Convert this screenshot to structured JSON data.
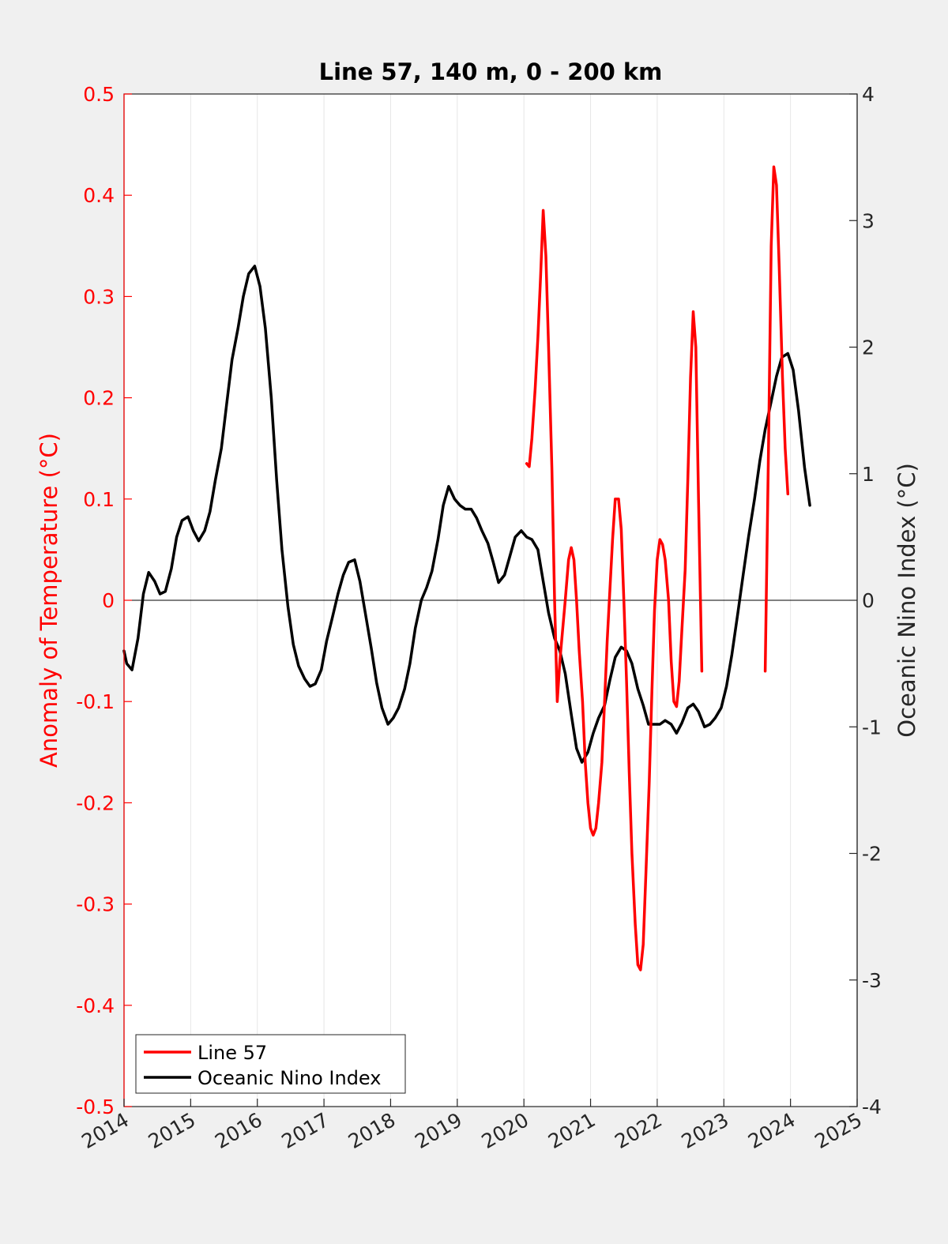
{
  "colors": {
    "figure_bg": "#f0f0f0",
    "axes_bg": "#ffffff",
    "left_axis": "#ff0000",
    "right_axis": "#262626",
    "grid": "#e6e6e6"
  },
  "chart_data": {
    "type": "line",
    "title": "Line 57, 140 m, 0 - 200 km",
    "xlim": [
      2014,
      2025
    ],
    "x_ticks": [
      2014,
      2015,
      2016,
      2017,
      2018,
      2019,
      2020,
      2021,
      2022,
      2023,
      2024,
      2025
    ],
    "x_tick_labels": [
      "2014",
      "2015",
      "2016",
      "2017",
      "2018",
      "2019",
      "2020",
      "2021",
      "2022",
      "2023",
      "2024",
      "2025"
    ],
    "ylabel_left": "Anomaly of Temperature (°C)",
    "ylim_left": [
      -0.5,
      0.5
    ],
    "y_ticks_left": [
      "-0.5",
      "-0.4",
      "-0.3",
      "-0.2",
      "-0.1",
      "0",
      "0.1",
      "0.2",
      "0.3",
      "0.4",
      "0.5"
    ],
    "ylabel_right": "Oceanic Nino Index (°C)",
    "ylim_right": [
      -4,
      4
    ],
    "y_ticks_right": [
      "-4",
      "-3",
      "-2",
      "-1",
      "0",
      "1",
      "2",
      "3",
      "4"
    ],
    "grid": "vertical",
    "zero_line": true,
    "legend": {
      "placement": "bottom-left",
      "entries": [
        "Line 57",
        "Oceanic Nino Index"
      ]
    },
    "series": [
      {
        "name": "Line 57",
        "axis": "left",
        "color": "#ff0000",
        "segments": [
          [
            [
              2020.04,
              0.135
            ],
            [
              2020.08,
              0.132
            ],
            [
              2020.12,
              0.16
            ],
            [
              2020.17,
              0.21
            ],
            [
              2020.21,
              0.26
            ],
            [
              2020.25,
              0.32
            ],
            [
              2020.29,
              0.385
            ],
            [
              2020.33,
              0.34
            ],
            [
              2020.37,
              0.25
            ],
            [
              2020.42,
              0.13
            ],
            [
              2020.46,
              0.0
            ],
            [
              2020.5,
              -0.1
            ],
            [
              2020.54,
              -0.06
            ],
            [
              2020.58,
              -0.03
            ],
            [
              2020.62,
              0.0
            ],
            [
              2020.67,
              0.04
            ],
            [
              2020.71,
              0.052
            ],
            [
              2020.75,
              0.04
            ],
            [
              2020.79,
              0.0
            ],
            [
              2020.83,
              -0.05
            ],
            [
              2020.88,
              -0.1
            ],
            [
              2020.92,
              -0.16
            ],
            [
              2020.96,
              -0.2
            ],
            [
              2021.0,
              -0.225
            ],
            [
              2021.04,
              -0.232
            ],
            [
              2021.08,
              -0.225
            ],
            [
              2021.12,
              -0.2
            ],
            [
              2021.17,
              -0.16
            ],
            [
              2021.21,
              -0.1
            ],
            [
              2021.25,
              -0.04
            ],
            [
              2021.29,
              0.01
            ],
            [
              2021.33,
              0.06
            ],
            [
              2021.37,
              0.1
            ],
            [
              2021.42,
              0.1
            ],
            [
              2021.46,
              0.07
            ],
            [
              2021.5,
              0.0
            ],
            [
              2021.54,
              -0.08
            ],
            [
              2021.58,
              -0.17
            ],
            [
              2021.62,
              -0.25
            ],
            [
              2021.67,
              -0.32
            ],
            [
              2021.71,
              -0.36
            ],
            [
              2021.75,
              -0.365
            ],
            [
              2021.79,
              -0.34
            ],
            [
              2021.83,
              -0.27
            ],
            [
              2021.88,
              -0.18
            ],
            [
              2021.92,
              -0.09
            ],
            [
              2021.96,
              -0.01
            ],
            [
              2022.0,
              0.04
            ],
            [
              2022.04,
              0.06
            ],
            [
              2022.08,
              0.055
            ],
            [
              2022.12,
              0.04
            ],
            [
              2022.17,
              0.0
            ],
            [
              2022.21,
              -0.06
            ],
            [
              2022.25,
              -0.1
            ],
            [
              2022.29,
              -0.105
            ],
            [
              2022.33,
              -0.08
            ],
            [
              2022.37,
              -0.03
            ],
            [
              2022.42,
              0.03
            ],
            [
              2022.46,
              0.12
            ],
            [
              2022.5,
              0.22
            ],
            [
              2022.54,
              0.285
            ],
            [
              2022.58,
              0.25
            ],
            [
              2022.62,
              0.1
            ],
            [
              2022.67,
              -0.07
            ]
          ],
          [
            [
              2023.62,
              -0.07
            ],
            [
              2023.67,
              0.15
            ],
            [
              2023.71,
              0.35
            ],
            [
              2023.75,
              0.428
            ],
            [
              2023.79,
              0.41
            ],
            [
              2023.83,
              0.33
            ],
            [
              2023.88,
              0.22
            ],
            [
              2023.92,
              0.15
            ],
            [
              2023.96,
              0.105
            ]
          ]
        ]
      },
      {
        "name": "Oceanic Nino Index",
        "axis": "right",
        "color": "#000000",
        "values": [
          [
            2014.0,
            -0.4
          ],
          [
            2014.04,
            -0.5
          ],
          [
            2014.12,
            -0.55
          ],
          [
            2014.21,
            -0.3
          ],
          [
            2014.29,
            0.05
          ],
          [
            2014.37,
            0.22
          ],
          [
            2014.46,
            0.15
          ],
          [
            2014.54,
            0.05
          ],
          [
            2014.62,
            0.07
          ],
          [
            2014.71,
            0.25
          ],
          [
            2014.79,
            0.5
          ],
          [
            2014.87,
            0.63
          ],
          [
            2014.96,
            0.66
          ],
          [
            2015.04,
            0.55
          ],
          [
            2015.12,
            0.47
          ],
          [
            2015.21,
            0.55
          ],
          [
            2015.29,
            0.7
          ],
          [
            2015.37,
            0.95
          ],
          [
            2015.46,
            1.2
          ],
          [
            2015.54,
            1.55
          ],
          [
            2015.62,
            1.9
          ],
          [
            2015.71,
            2.15
          ],
          [
            2015.79,
            2.4
          ],
          [
            2015.87,
            2.58
          ],
          [
            2015.96,
            2.64
          ],
          [
            2016.04,
            2.48
          ],
          [
            2016.12,
            2.15
          ],
          [
            2016.21,
            1.6
          ],
          [
            2016.29,
            0.95
          ],
          [
            2016.37,
            0.4
          ],
          [
            2016.46,
            -0.05
          ],
          [
            2016.54,
            -0.35
          ],
          [
            2016.62,
            -0.52
          ],
          [
            2016.71,
            -0.62
          ],
          [
            2016.79,
            -0.68
          ],
          [
            2016.87,
            -0.66
          ],
          [
            2016.96,
            -0.55
          ],
          [
            2017.04,
            -0.32
          ],
          [
            2017.12,
            -0.15
          ],
          [
            2017.21,
            0.05
          ],
          [
            2017.29,
            0.2
          ],
          [
            2017.37,
            0.3
          ],
          [
            2017.46,
            0.32
          ],
          [
            2017.54,
            0.15
          ],
          [
            2017.62,
            -0.1
          ],
          [
            2017.71,
            -0.38
          ],
          [
            2017.79,
            -0.65
          ],
          [
            2017.87,
            -0.85
          ],
          [
            2017.96,
            -0.98
          ],
          [
            2018.04,
            -0.93
          ],
          [
            2018.12,
            -0.85
          ],
          [
            2018.21,
            -0.7
          ],
          [
            2018.29,
            -0.5
          ],
          [
            2018.37,
            -0.22
          ],
          [
            2018.46,
            0.0
          ],
          [
            2018.54,
            0.1
          ],
          [
            2018.62,
            0.23
          ],
          [
            2018.71,
            0.48
          ],
          [
            2018.79,
            0.75
          ],
          [
            2018.87,
            0.9
          ],
          [
            2018.96,
            0.8
          ],
          [
            2019.04,
            0.75
          ],
          [
            2019.12,
            0.72
          ],
          [
            2019.21,
            0.72
          ],
          [
            2019.29,
            0.65
          ],
          [
            2019.37,
            0.55
          ],
          [
            2019.46,
            0.45
          ],
          [
            2019.54,
            0.3
          ],
          [
            2019.62,
            0.14
          ],
          [
            2019.71,
            0.2
          ],
          [
            2019.79,
            0.35
          ],
          [
            2019.87,
            0.5
          ],
          [
            2019.96,
            0.55
          ],
          [
            2020.04,
            0.5
          ],
          [
            2020.12,
            0.48
          ],
          [
            2020.21,
            0.4
          ],
          [
            2020.29,
            0.15
          ],
          [
            2020.37,
            -0.1
          ],
          [
            2020.46,
            -0.3
          ],
          [
            2020.54,
            -0.4
          ],
          [
            2020.62,
            -0.58
          ],
          [
            2020.71,
            -0.9
          ],
          [
            2020.79,
            -1.17
          ],
          [
            2020.87,
            -1.28
          ],
          [
            2020.96,
            -1.2
          ],
          [
            2021.04,
            -1.05
          ],
          [
            2021.12,
            -0.93
          ],
          [
            2021.21,
            -0.83
          ],
          [
            2021.29,
            -0.63
          ],
          [
            2021.37,
            -0.45
          ],
          [
            2021.46,
            -0.37
          ],
          [
            2021.54,
            -0.4
          ],
          [
            2021.62,
            -0.5
          ],
          [
            2021.71,
            -0.7
          ],
          [
            2021.79,
            -0.83
          ],
          [
            2021.87,
            -0.98
          ],
          [
            2021.96,
            -0.98
          ],
          [
            2022.04,
            -0.98
          ],
          [
            2022.12,
            -0.95
          ],
          [
            2022.21,
            -0.98
          ],
          [
            2022.29,
            -1.05
          ],
          [
            2022.37,
            -0.97
          ],
          [
            2022.46,
            -0.85
          ],
          [
            2022.54,
            -0.82
          ],
          [
            2022.62,
            -0.88
          ],
          [
            2022.71,
            -1.0
          ],
          [
            2022.79,
            -0.98
          ],
          [
            2022.87,
            -0.93
          ],
          [
            2022.96,
            -0.85
          ],
          [
            2023.04,
            -0.68
          ],
          [
            2023.12,
            -0.43
          ],
          [
            2023.21,
            -0.1
          ],
          [
            2023.29,
            0.2
          ],
          [
            2023.37,
            0.5
          ],
          [
            2023.46,
            0.8
          ],
          [
            2023.54,
            1.1
          ],
          [
            2023.62,
            1.35
          ],
          [
            2023.71,
            1.57
          ],
          [
            2023.79,
            1.77
          ],
          [
            2023.87,
            1.92
          ],
          [
            2023.96,
            1.95
          ],
          [
            2024.04,
            1.82
          ],
          [
            2024.12,
            1.5
          ],
          [
            2024.21,
            1.05
          ],
          [
            2024.29,
            0.75
          ]
        ]
      }
    ]
  }
}
